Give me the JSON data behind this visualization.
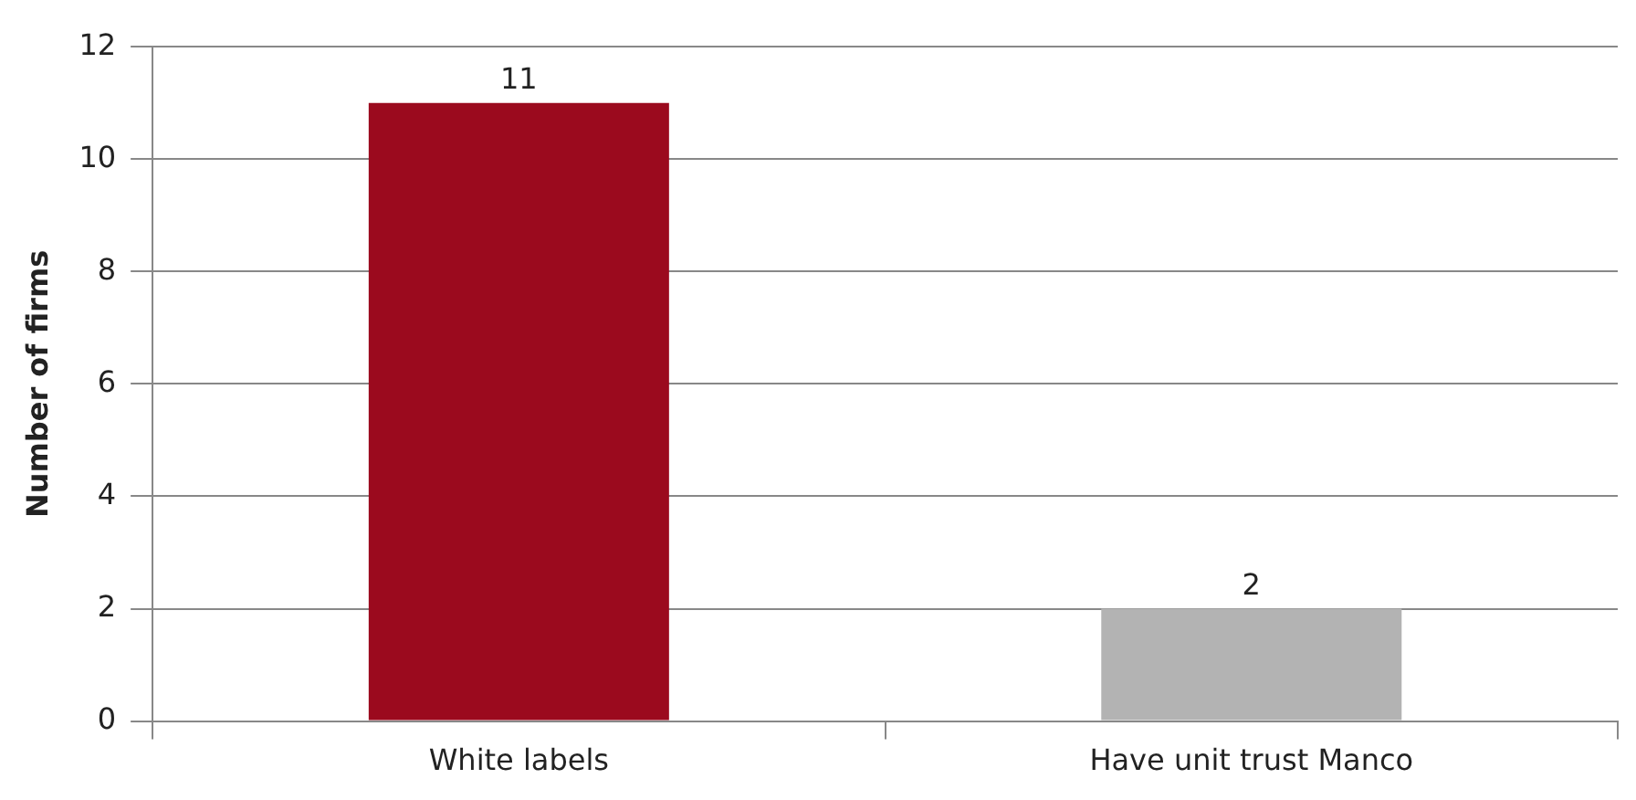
{
  "chart_data": {
    "type": "bar",
    "ylabel": "Number of firms",
    "categories": [
      "White labels",
      "Have unit trust Manco"
    ],
    "values": [
      11,
      2
    ],
    "colors": [
      "#9b0a1e",
      "#b3b3b3"
    ],
    "ylim": [
      0,
      12
    ],
    "yticks": [
      0,
      2,
      4,
      6,
      8,
      10,
      12
    ],
    "grid": "y",
    "legend": false,
    "data_labels": true
  }
}
